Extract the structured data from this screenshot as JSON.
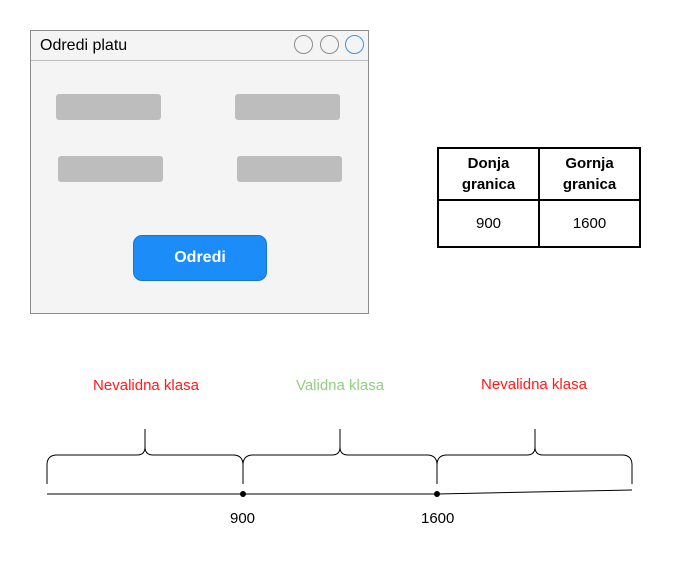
{
  "window": {
    "title": "Odredi platu",
    "controls": [
      "circle-button",
      "circle-button",
      "circle-button"
    ],
    "fields": [
      "",
      "",
      "",
      ""
    ],
    "action_button": "Odredi"
  },
  "bounds_table": {
    "headers": [
      "Donja granica",
      "Gornja granica"
    ],
    "values": [
      "900",
      "1600"
    ]
  },
  "number_line": {
    "classes": [
      {
        "label": "Nevalidna klasa",
        "status": "invalid"
      },
      {
        "label": "Validna klasa",
        "status": "valid"
      },
      {
        "label": "Nevalidna klasa",
        "status": "invalid"
      }
    ],
    "boundaries": [
      "900",
      "1600"
    ],
    "colors": {
      "invalid": "#ff1a1a",
      "valid": "#8fcf7f"
    }
  }
}
